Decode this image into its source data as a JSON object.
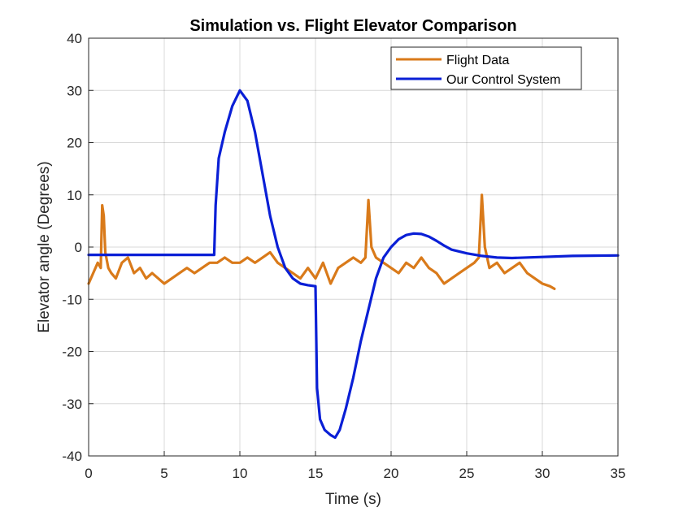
{
  "chart_data": {
    "type": "line",
    "title": "Simulation vs. Flight Elevator Comparison",
    "xlabel": "Time (s)",
    "ylabel": "Elevator angle (Degrees)",
    "xlim": [
      0,
      35
    ],
    "ylim": [
      -40,
      40
    ],
    "xticks": [
      "0",
      "5",
      "10",
      "15",
      "20",
      "25",
      "30",
      "35"
    ],
    "yticks": [
      "-40",
      "-30",
      "-20",
      "-10",
      "0",
      "10",
      "20",
      "30",
      "40"
    ],
    "grid": true,
    "legend_position": "top-right",
    "series": [
      {
        "name": "Flight Data",
        "color": "#D97A1A",
        "x": [
          0,
          0.3,
          0.6,
          0.8,
          0.9,
          1.0,
          1.1,
          1.3,
          1.5,
          1.8,
          2.2,
          2.6,
          3.0,
          3.4,
          3.8,
          4.2,
          4.6,
          5.0,
          5.5,
          6.0,
          6.5,
          7.0,
          7.5,
          8.0,
          8.5,
          9.0,
          9.5,
          10.0,
          10.5,
          11.0,
          11.5,
          12.0,
          12.5,
          13.0,
          13.5,
          14.0,
          14.5,
          15.0,
          15.5,
          16.0,
          16.5,
          17.0,
          17.5,
          18.0,
          18.3,
          18.5,
          18.7,
          19.0,
          19.5,
          20.0,
          20.5,
          21.0,
          21.5,
          22.0,
          22.5,
          23.0,
          23.5,
          24.0,
          24.5,
          25.0,
          25.5,
          25.8,
          26.0,
          26.2,
          26.5,
          27.0,
          27.5,
          28.0,
          28.5,
          29.0,
          29.5,
          30.0,
          30.5,
          30.8
        ],
        "y": [
          -7,
          -5,
          -3,
          -4,
          8,
          6,
          -1,
          -4,
          -5,
          -6,
          -3,
          -2,
          -5,
          -4,
          -6,
          -5,
          -6,
          -7,
          -6,
          -5,
          -4,
          -5,
          -4,
          -3,
          -3,
          -2,
          -3,
          -3,
          -2,
          -3,
          -2,
          -1,
          -3,
          -4,
          -5,
          -6,
          -4,
          -6,
          -3,
          -7,
          -4,
          -3,
          -2,
          -3,
          -2,
          9,
          0,
          -2,
          -3,
          -4,
          -5,
          -3,
          -4,
          -2,
          -4,
          -5,
          -7,
          -6,
          -5,
          -4,
          -3,
          -2,
          10,
          0,
          -4,
          -3,
          -5,
          -4,
          -3,
          -5,
          -6,
          -7,
          -7.5,
          -8
        ]
      },
      {
        "name": "Our Control System",
        "color": "#0A1FD6",
        "x": [
          0,
          5,
          8.3,
          8.4,
          8.6,
          9.0,
          9.5,
          10.0,
          10.5,
          11.0,
          11.5,
          12.0,
          12.5,
          13.0,
          13.5,
          14.0,
          14.5,
          15.0,
          15.1,
          15.3,
          15.6,
          16.0,
          16.3,
          16.6,
          17.0,
          17.5,
          18.0,
          18.5,
          19.0,
          19.5,
          20.0,
          20.5,
          21.0,
          21.5,
          22.0,
          22.5,
          23.0,
          23.5,
          24.0,
          25.0,
          26.0,
          27.0,
          28.0,
          30.0,
          32.0,
          35.0
        ],
        "y": [
          -1.5,
          -1.5,
          -1.5,
          8,
          17,
          22,
          27,
          30,
          28,
          22,
          14,
          6,
          0,
          -4,
          -6,
          -7,
          -7.3,
          -7.5,
          -27,
          -33,
          -35,
          -36,
          -36.5,
          -35,
          -31,
          -25,
          -18,
          -12,
          -6,
          -2,
          0,
          1.5,
          2.3,
          2.6,
          2.5,
          2.0,
          1.2,
          0.3,
          -0.5,
          -1.2,
          -1.7,
          -2.0,
          -2.1,
          -1.9,
          -1.7,
          -1.6
        ]
      }
    ]
  }
}
